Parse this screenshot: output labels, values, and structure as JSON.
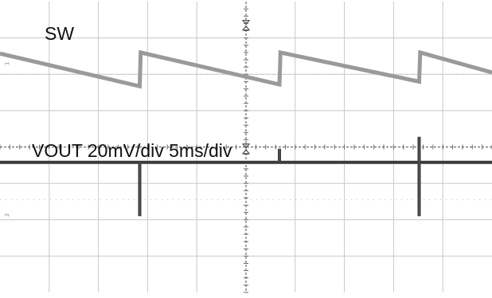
{
  "chart_data": {
    "type": "line",
    "title": "",
    "xlabel": "",
    "ylabel": "",
    "grid": true,
    "xlim": [
      0,
      50
    ],
    "ylim": [
      0,
      8
    ],
    "colors": {
      "grid": "#c8c8c8",
      "axis": "#6a6a6a",
      "sw": "#9a9a9a",
      "vout": "#3a3a3a"
    },
    "channel_markers": [
      "1",
      "2"
    ],
    "series": [
      {
        "name": "SW",
        "x": [
          0,
          14.2,
          14.2,
          14.3,
          28.4,
          28.4,
          28.5,
          42.6,
          42.6,
          42.7,
          50
        ],
        "y": [
          6.57,
          5.67,
          5.67,
          6.6,
          5.72,
          5.72,
          6.6,
          5.8,
          5.8,
          6.6,
          6.05
        ]
      },
      {
        "name": "VOUT 20mV/div 5ms/div",
        "x": [
          0,
          14.2,
          14.2,
          14.2,
          14.2,
          28.4,
          28.4,
          28.4,
          28.4,
          42.6,
          42.6,
          42.6,
          42.6,
          50
        ],
        "y": [
          3.58,
          3.58,
          2.1,
          3.58,
          3.58,
          3.58,
          3.95,
          3.58,
          3.58,
          3.58,
          4.28,
          2.1,
          3.58,
          3.58
        ]
      }
    ]
  }
}
